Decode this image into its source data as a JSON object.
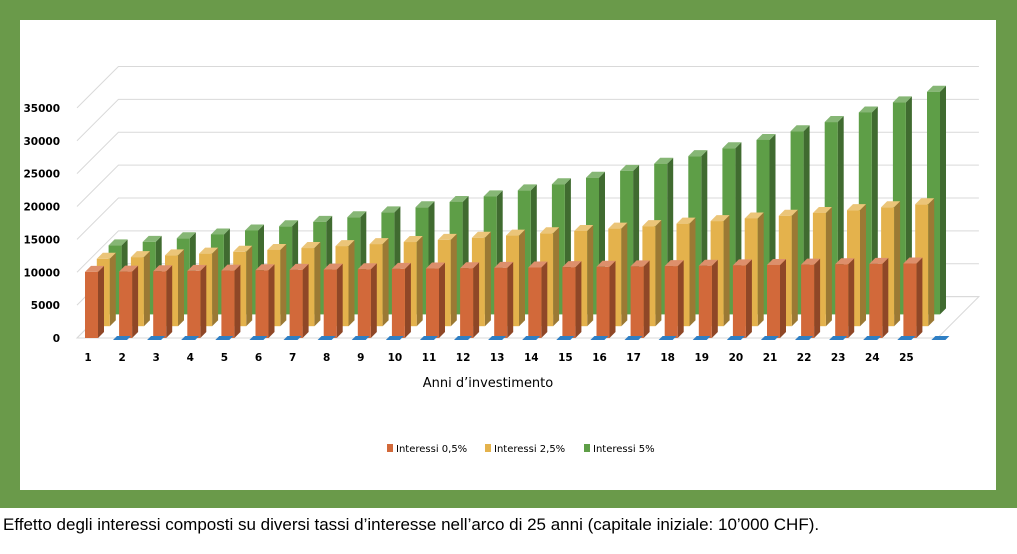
{
  "chart_data": {
    "type": "bar",
    "categories": [
      "1",
      "2",
      "3",
      "4",
      "5",
      "6",
      "7",
      "8",
      "9",
      "10",
      "11",
      "12",
      "13",
      "14",
      "15",
      "16",
      "17",
      "18",
      "19",
      "20",
      "21",
      "22",
      "23",
      "24",
      "25"
    ],
    "series": [
      {
        "name": "Interessi 0,5%",
        "color": "#d2693a",
        "values": [
          10050,
          10100,
          10151,
          10202,
          10253,
          10304,
          10355,
          10407,
          10459,
          10511,
          10564,
          10617,
          10670,
          10723,
          10777,
          10831,
          10885,
          10939,
          10994,
          11049,
          11104,
          11160,
          11216,
          11272,
          11328
        ]
      },
      {
        "name": "Interessi 2,5%",
        "color": "#e4b24c",
        "values": [
          10250,
          10506,
          10769,
          11038,
          11314,
          11597,
          11887,
          12184,
          12489,
          12801,
          13121,
          13449,
          13785,
          14130,
          14483,
          14845,
          15216,
          15597,
          15987,
          16386,
          16796,
          17216,
          17646,
          18087,
          18539
        ]
      },
      {
        "name": "Interessi 5%",
        "color": "#5e9e47",
        "values": [
          10500,
          11025,
          11576,
          12155,
          12763,
          13401,
          14071,
          14775,
          15513,
          16289,
          17103,
          17959,
          18856,
          19799,
          20789,
          21829,
          22920,
          24066,
          25270,
          26533,
          27860,
          29253,
          30715,
          32251,
          33864
        ]
      }
    ],
    "yticks": [
      "0",
      "5000",
      "10000",
      "15000",
      "20000",
      "25000",
      "30000",
      "35000"
    ],
    "xlabel": "Anni d’investimento",
    "ylim": [
      0,
      40000
    ],
    "legend_position": "bottom",
    "grid": true
  },
  "caption": "Effetto degli interessi composti su diversi tassi d’interesse nell’arco di 25 anni (capitale iniziale: 10’000 CHF)."
}
